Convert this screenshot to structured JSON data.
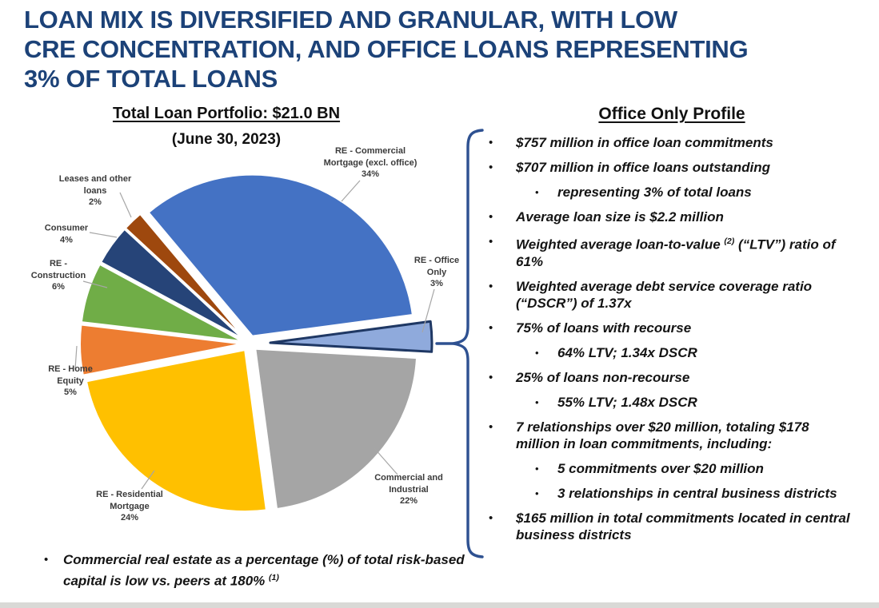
{
  "slide": {
    "title": "LOAN MIX IS DIVERSIFIED AND GRANULAR, WITH LOW\nCRE CONCENTRATION, AND OFFICE LOANS REPRESENTING\n3% OF TOTAL LOANS"
  },
  "colors": {
    "title": "#1c4278",
    "brace": "#2e5191",
    "leader_line": "#a6a6a6",
    "bottom_bar": "#d9d9d6",
    "office_border": "#1f3864"
  },
  "chart_data": {
    "type": "pie",
    "title": "Total Loan Portfolio: $21.0 BN",
    "subtitle": "(June 30, 2023)",
    "unit": "% of total loans",
    "direction": "clockwise",
    "start_angle_deg": -40,
    "slices": [
      {
        "label": "RE - Commercial Mortgage (excl. office)",
        "value": 34,
        "color": "#4472C4",
        "label_text": "RE - Commercial\nMortgage (excl. office)\n34%"
      },
      {
        "label": "RE - Office Only",
        "value": 3,
        "color": "#8FAADC",
        "border": "#1F3864",
        "exploded": true,
        "label_text": "RE - Office\nOnly\n3%"
      },
      {
        "label": "Commercial and Industrial",
        "value": 22,
        "color": "#A5A5A5",
        "label_text": "Commercial and\nIndustrial\n22%"
      },
      {
        "label": "RE - Residential Mortgage",
        "value": 24,
        "color": "#FFC000",
        "label_text": "RE - Residential\nMortgage\n24%"
      },
      {
        "label": "RE - Home Equity",
        "value": 5,
        "color": "#ED7D31",
        "label_text": "RE - Home\nEquity\n5%"
      },
      {
        "label": "RE - Construction",
        "value": 6,
        "color": "#70AD47",
        "label_text": "RE -\nConstruction\n6%"
      },
      {
        "label": "Consumer",
        "value": 4,
        "color": "#264478",
        "label_text": "Consumer\n4%"
      },
      {
        "label": "Leases and other loans",
        "value": 2,
        "color": "#9E480E",
        "label_text": "Leases and other\nloans\n2%"
      }
    ]
  },
  "office_profile": {
    "heading": "Office Only Profile",
    "items": [
      {
        "level": 1,
        "segments": [
          {
            "t": "$757 million in office loan commitments"
          }
        ]
      },
      {
        "level": 1,
        "segments": [
          {
            "t": "$707 million in office loans outstanding"
          }
        ]
      },
      {
        "level": 2,
        "segments": [
          {
            "t": "representing 3% of total loans"
          }
        ]
      },
      {
        "level": 1,
        "segments": [
          {
            "t": "Average loan size is $2.2 million"
          }
        ]
      },
      {
        "level": 1,
        "segments": [
          {
            "t": "Weighted average loan-to-value "
          },
          {
            "t": "(2)",
            "sup": true
          },
          {
            "t": " (“LTV”) ratio of 61%"
          }
        ]
      },
      {
        "level": 1,
        "segments": [
          {
            "t": "Weighted average debt service coverage ratio (“DSCR”) of 1.37x"
          }
        ]
      },
      {
        "level": 1,
        "segments": [
          {
            "t": "75% of loans with recourse"
          }
        ]
      },
      {
        "level": 2,
        "segments": [
          {
            "t": "64% LTV; 1.34x DSCR"
          }
        ]
      },
      {
        "level": 1,
        "segments": [
          {
            "t": "25% of loans non-recourse"
          }
        ]
      },
      {
        "level": 2,
        "segments": [
          {
            "t": "55% LTV; 1.48x DSCR"
          }
        ]
      },
      {
        "level": 1,
        "segments": [
          {
            "t": "7 relationships over $20 million, totaling $178 million in loan commitments, including:"
          }
        ]
      },
      {
        "level": 2,
        "segments": [
          {
            "t": "5 commitments over $20 million"
          }
        ]
      },
      {
        "level": 2,
        "segments": [
          {
            "t": "3 relationships in central business districts"
          }
        ]
      },
      {
        "level": 1,
        "segments": [
          {
            "t": "$165 million in total commitments located in central business districts"
          }
        ]
      }
    ]
  },
  "footnote": {
    "segments": [
      {
        "t": "Commercial real estate as a percentage (%) of total risk-based capital is low vs. peers at 180% "
      },
      {
        "t": "(1)",
        "sup": true
      }
    ]
  }
}
